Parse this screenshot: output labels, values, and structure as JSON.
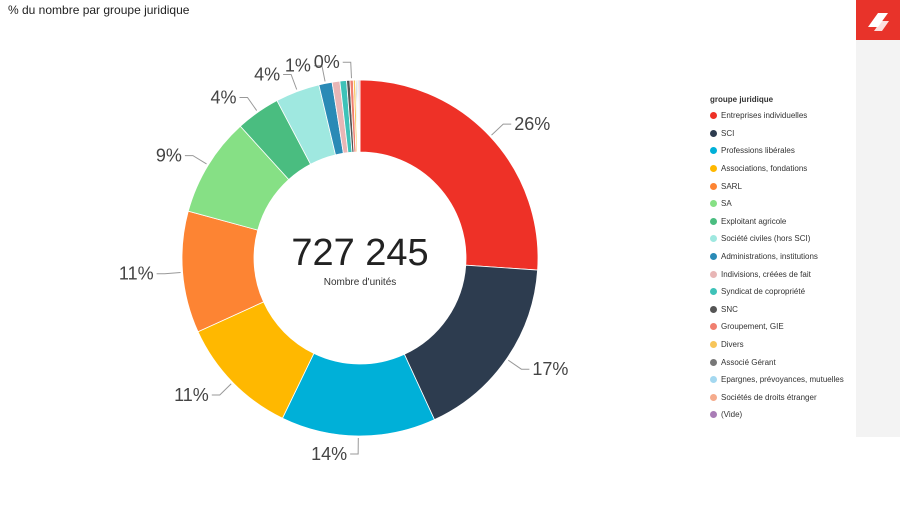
{
  "title": "% du nombre par groupe juridique",
  "center": {
    "value": "727 245",
    "label": "Nombre d'unités"
  },
  "chart_data": {
    "type": "pie",
    "legend_title": "groupe juridique",
    "legend_position": "right",
    "slices": [
      {
        "name": "Entreprises individuelles",
        "value": 26.0,
        "label": "26%",
        "color": "#ee3127"
      },
      {
        "name": "SCI",
        "value": 17.0,
        "label": "17%",
        "color": "#2d3c4f"
      },
      {
        "name": "Professions libérales",
        "value": 14.0,
        "label": "14%",
        "color": "#00b0d8"
      },
      {
        "name": "Associations, fondations",
        "value": 11.0,
        "label": "11%",
        "color": "#ffb800"
      },
      {
        "name": "SARL",
        "value": 11.0,
        "label": "11%",
        "color": "#fd8433"
      },
      {
        "name": "SA",
        "value": 9.0,
        "label": "9%",
        "color": "#86e085"
      },
      {
        "name": "Exploitant agricole",
        "value": 4.0,
        "label": "4%",
        "color": "#4abd80"
      },
      {
        "name": "Société civiles (hors SCI)",
        "value": 4.0,
        "label": "4%",
        "color": "#9fe8e0"
      },
      {
        "name": "Administrations, institutions",
        "value": 1.2,
        "label": "1%",
        "color": "#2a8ab6"
      },
      {
        "name": "Indivisions, créées de fait",
        "value": 0.7,
        "label": "",
        "color": "#e8b6b6"
      },
      {
        "name": "Syndicat de copropriété",
        "value": 0.6,
        "label": "",
        "color": "#3ec2b8"
      },
      {
        "name": "SNC",
        "value": 0.3,
        "label": "",
        "color": "#555555"
      },
      {
        "name": "Groupement, GIE",
        "value": 0.3,
        "label": "0%",
        "color": "#f07f6f"
      },
      {
        "name": "Divers",
        "value": 0.2,
        "label": "",
        "color": "#f7c55a"
      },
      {
        "name": "Associé Gérant",
        "value": 0.1,
        "label": "",
        "color": "#777777"
      },
      {
        "name": "Epargnes, prévoyances, mutuelles",
        "value": 0.1,
        "label": "",
        "color": "#a4d8f0"
      },
      {
        "name": "Sociétés de droits étranger",
        "value": 0.1,
        "label": "",
        "color": "#f5ab8c"
      },
      {
        "name": "(Vide)",
        "value": 0.1,
        "label": "",
        "color": "#a97cb6"
      }
    ]
  }
}
